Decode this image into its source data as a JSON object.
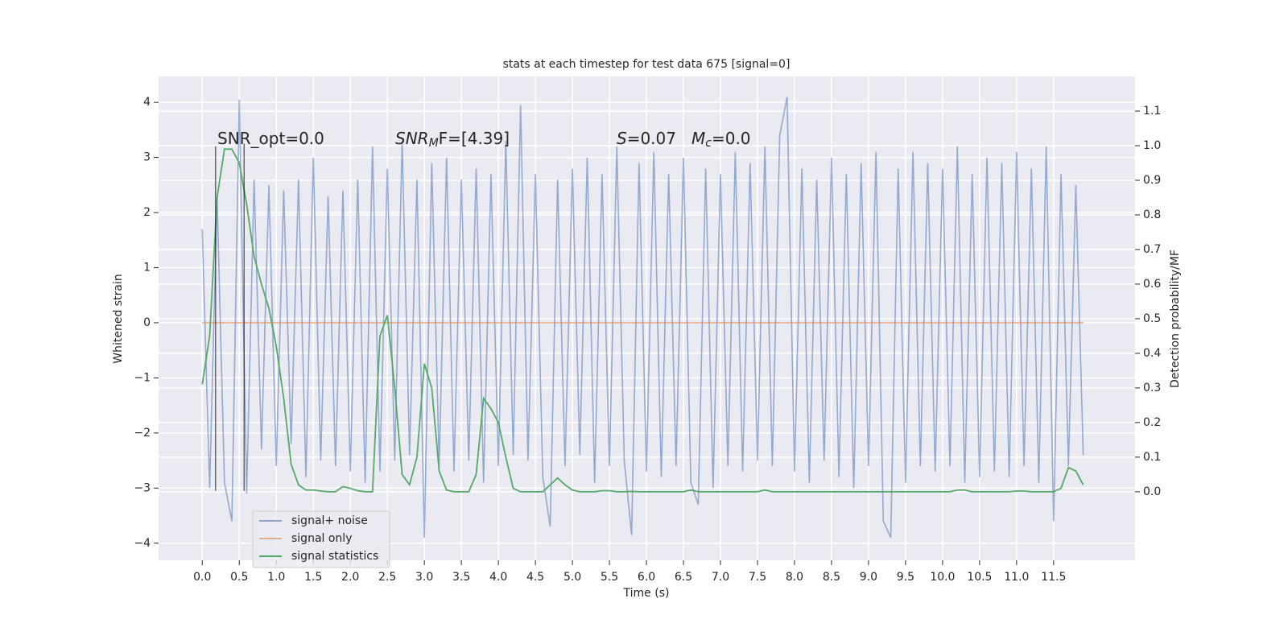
{
  "chart_data": {
    "type": "line",
    "title": "stats at each timestep for test data 675 [signal=0]",
    "xlabel": "Time (s)",
    "ylabel": "Whitened strain",
    "y2label": "Detection probability/MF",
    "x": [
      0.0,
      0.1,
      0.2,
      0.3,
      0.4,
      0.5,
      0.6,
      0.7,
      0.8,
      0.9,
      1.0,
      1.1,
      1.2,
      1.3,
      1.4,
      1.5,
      1.6,
      1.7,
      1.8,
      1.9,
      2.0,
      2.1,
      2.2,
      2.3,
      2.4,
      2.5,
      2.6,
      2.7,
      2.8,
      2.9,
      3.0,
      3.1,
      3.2,
      3.3,
      3.4,
      3.5,
      3.6,
      3.7,
      3.8,
      3.9,
      4.0,
      4.1,
      4.2,
      4.3,
      4.4,
      4.5,
      4.6,
      4.7,
      4.8,
      4.9,
      5.0,
      5.1,
      5.2,
      5.3,
      5.4,
      5.5,
      5.6,
      5.7,
      5.8,
      5.9,
      6.0,
      6.1,
      6.2,
      6.3,
      6.4,
      6.5,
      6.6,
      6.7,
      6.8,
      6.9,
      7.0,
      7.1,
      7.2,
      7.3,
      7.4,
      7.5,
      7.6,
      7.7,
      7.8,
      7.9,
      8.0,
      8.1,
      8.2,
      8.3,
      8.4,
      8.5,
      8.6,
      8.7,
      8.8,
      8.9,
      9.0,
      9.1,
      9.2,
      9.3,
      9.4,
      9.5,
      9.6,
      9.7,
      9.8,
      9.9,
      10.0,
      10.1,
      10.2,
      10.3,
      10.4,
      10.5,
      10.6,
      10.7,
      10.8,
      10.9,
      11.0,
      11.1,
      11.2,
      11.3,
      11.4,
      11.5,
      11.6,
      11.7,
      11.8,
      11.9
    ],
    "series": [
      {
        "name": "signal+ noise",
        "color": "#4c72b0",
        "values": [
          1.7,
          -3.0,
          2.3,
          -2.9,
          -3.6,
          4.05,
          -3.1,
          2.6,
          -2.3,
          2.5,
          -2.6,
          2.4,
          -2.2,
          2.6,
          -2.8,
          3.0,
          -2.5,
          2.3,
          -2.6,
          2.4,
          -2.7,
          2.6,
          -2.9,
          3.2,
          -2.7,
          2.8,
          -2.5,
          3.3,
          -2.4,
          2.6,
          -3.9,
          2.9,
          -2.6,
          3.0,
          -2.7,
          2.6,
          -2.5,
          2.8,
          -2.9,
          2.7,
          -2.6,
          3.3,
          -2.4,
          3.95,
          -2.5,
          2.7,
          -2.8,
          -3.7,
          2.6,
          -2.6,
          2.8,
          -2.4,
          3.0,
          -2.9,
          2.7,
          -2.6,
          3.2,
          -2.5,
          -3.85,
          2.9,
          -2.7,
          3.1,
          -2.8,
          2.7,
          -2.6,
          3.0,
          -2.9,
          -3.3,
          2.8,
          -3.0,
          2.7,
          -2.6,
          3.1,
          -2.7,
          2.9,
          -2.5,
          3.2,
          -2.6,
          3.4,
          4.1,
          -2.7,
          2.8,
          -2.9,
          2.6,
          -2.5,
          3.0,
          -2.8,
          2.7,
          -3.0,
          2.9,
          -2.6,
          3.1,
          -3.6,
          -3.9,
          2.8,
          -2.9,
          3.1,
          -2.6,
          2.9,
          -2.7,
          2.8,
          -2.6,
          3.2,
          -2.9,
          2.7,
          -2.8,
          3.0,
          -2.7,
          2.9,
          -2.8,
          3.1,
          -2.6,
          2.8,
          -2.9,
          3.2,
          -3.6,
          2.7,
          -2.6,
          2.5,
          -2.4
        ]
      },
      {
        "name": "signal only",
        "color": "#dd8452",
        "values": [
          0,
          0,
          0,
          0,
          0,
          0,
          0,
          0,
          0,
          0,
          0,
          0,
          0,
          0,
          0,
          0,
          0,
          0,
          0,
          0,
          0,
          0,
          0,
          0,
          0,
          0,
          0,
          0,
          0,
          0,
          0,
          0,
          0,
          0,
          0,
          0,
          0,
          0,
          0,
          0,
          0,
          0,
          0,
          0,
          0,
          0,
          0,
          0,
          0,
          0,
          0,
          0,
          0,
          0,
          0,
          0,
          0,
          0,
          0,
          0,
          0,
          0,
          0,
          0,
          0,
          0,
          0,
          0,
          0,
          0,
          0,
          0,
          0,
          0,
          0,
          0,
          0,
          0,
          0,
          0,
          0,
          0,
          0,
          0,
          0,
          0,
          0,
          0,
          0,
          0,
          0,
          0,
          0,
          0,
          0,
          0,
          0,
          0,
          0,
          0,
          0,
          0,
          0,
          0,
          0,
          0,
          0,
          0,
          0,
          0,
          0,
          0,
          0,
          0,
          0,
          0,
          0,
          0,
          0,
          0
        ]
      },
      {
        "name": "signal statistics",
        "color": "#55a868",
        "axis": "y2",
        "values": [
          0.31,
          0.45,
          0.85,
          0.99,
          0.99,
          0.95,
          0.83,
          0.68,
          0.6,
          0.53,
          0.42,
          0.27,
          0.08,
          0.02,
          0.005,
          0.005,
          0.002,
          0.0,
          0.0,
          0.015,
          0.01,
          0.003,
          0.0,
          0.0,
          0.45,
          0.51,
          0.3,
          0.05,
          0.02,
          0.1,
          0.37,
          0.3,
          0.06,
          0.005,
          0.0,
          0.0,
          0.0,
          0.05,
          0.27,
          0.24,
          0.2,
          0.1,
          0.01,
          0.0,
          0.0,
          0.0,
          0.0,
          0.02,
          0.04,
          0.02,
          0.005,
          0.0,
          0.0,
          0.0,
          0.003,
          0.003,
          0.0,
          0.0,
          0.001,
          0.0,
          0.0,
          0.0,
          0.0,
          0.0,
          0.0,
          0.0,
          0.005,
          0.0,
          0.0,
          0.0,
          0.0,
          0.0,
          0.0,
          0.0,
          0.0,
          0.0,
          0.005,
          0.0,
          0.0,
          0.0,
          0.0,
          0.0,
          0.0,
          0.0,
          0.0,
          0.0,
          0.0,
          0.0,
          0.0,
          0.0,
          0.0,
          0.0,
          0.0,
          0.0,
          0.0,
          0.0,
          0.0,
          0.0,
          0.0,
          0.0,
          0.0,
          0.0,
          0.005,
          0.005,
          0.0,
          0.0,
          0.0,
          0.0,
          0.0,
          0.0,
          0.002,
          0.002,
          0.0,
          0.0,
          0.0,
          0.0,
          0.01,
          0.07,
          0.06,
          0.02
        ]
      }
    ],
    "vlines": [
      {
        "x": 0.18,
        "ymin": -3.05,
        "ymax": 3.2,
        "color": "#000000"
      },
      {
        "x": 0.565,
        "ymin": -3.05,
        "ymax": 3.25,
        "color": "#000000"
      }
    ],
    "annotations": [
      {
        "text": "SNR_opt=0.0"
      },
      {
        "main": "SNR",
        "sub": "M",
        "tail": "F=[4.39]"
      },
      {
        "main": "S",
        "tail": "=0.07"
      },
      {
        "main": "M",
        "sub": "c",
        "tail": "=0.0"
      }
    ],
    "xlim": [
      -0.59,
      12.6
    ],
    "xticks": [
      {
        "value": 0,
        "label": "0.0"
      },
      0.5,
      {
        "value": 1,
        "label": "1.0"
      },
      1.5,
      {
        "value": 2,
        "label": "2.0"
      },
      2.5,
      {
        "value": 3,
        "label": "3.0"
      },
      3.5,
      {
        "value": 4,
        "label": "4.0"
      },
      4.5,
      {
        "value": 5,
        "label": "5.0"
      },
      5.5,
      {
        "value": 6,
        "label": "6.0"
      },
      6.5,
      {
        "value": 7,
        "label": "7.0"
      },
      7.5,
      {
        "value": 8,
        "label": "8.0"
      },
      8.5,
      {
        "value": 9,
        "label": "9.0"
      },
      9.5,
      {
        "value": 10,
        "label": "10.0"
      },
      10.5,
      {
        "value": 11,
        "label": "11.0"
      },
      11.5
    ],
    "ylim": [
      -4.31,
      4.47
    ],
    "yticks": [
      {
        "value": -4,
        "label": "−4"
      },
      {
        "value": -3,
        "label": "−3"
      },
      {
        "value": -2,
        "label": "−2"
      },
      {
        "value": -1,
        "label": "−1"
      },
      0,
      1,
      2,
      3,
      4
    ],
    "y2lim": [
      -0.198,
      1.2
    ],
    "y2ticks": [
      {
        "value": 0,
        "label": "0.0"
      },
      0.1,
      0.2,
      0.3,
      0.4,
      0.5,
      0.6,
      0.7,
      0.8,
      0.9,
      {
        "value": 1,
        "label": "1.0"
      },
      1.1
    ],
    "grid": true,
    "legend": "lower left"
  }
}
